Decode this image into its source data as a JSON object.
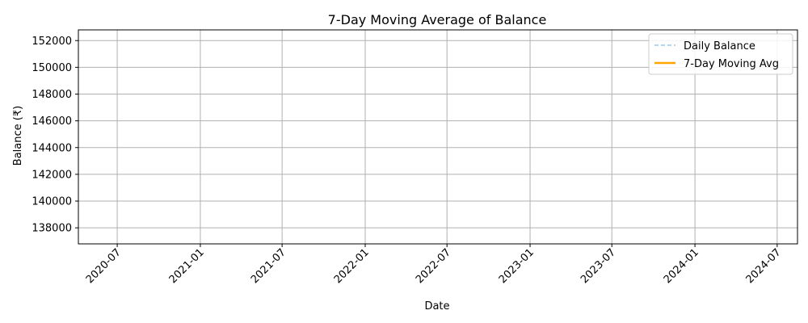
{
  "chart_data": {
    "type": "line",
    "title": "7-Day Moving Average of Balance",
    "xlabel": "Date",
    "ylabel": "Balance (₹)",
    "x_ticks": [
      "2020-07",
      "2021-01",
      "2021-07",
      "2022-01",
      "2022-07",
      "2023-01",
      "2023-07",
      "2024-01",
      "2024-07"
    ],
    "y_ticks": [
      138000,
      140000,
      142000,
      144000,
      146000,
      148000,
      150000,
      152000
    ],
    "xlim": [
      "2020-04-06",
      "2024-08-15"
    ],
    "ylim": [
      136800,
      152800
    ],
    "grid": true,
    "legend_position": "top-right",
    "series": [
      {
        "name": "Daily Balance",
        "color": "#9ecae1",
        "style": "dashed",
        "x": [],
        "y": []
      },
      {
        "name": "7-Day Moving Avg",
        "color": "#ffa500",
        "style": "solid",
        "x": [],
        "y": []
      }
    ]
  }
}
